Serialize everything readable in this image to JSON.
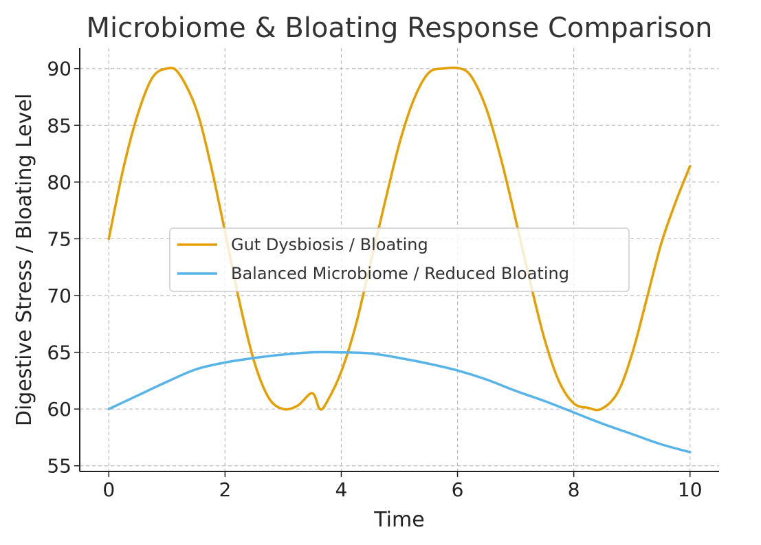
{
  "chart_data": {
    "type": "line",
    "title": "Microbiome & Bloating Response Comparison",
    "xlabel": "Time",
    "ylabel": "Digestive Stress / Bloating Level",
    "xlim": [
      -0.5,
      10.5
    ],
    "ylim": [
      54.5,
      91.8
    ],
    "xticks": [
      0,
      2,
      4,
      6,
      8,
      10
    ],
    "yticks": [
      55,
      60,
      65,
      70,
      75,
      80,
      85,
      90
    ],
    "xtick_labels": [
      "0",
      "2",
      "4",
      "6",
      "8",
      "10"
    ],
    "ytick_labels": [
      "55",
      "60",
      "65",
      "70",
      "75",
      "80",
      "85",
      "90"
    ],
    "grid": true,
    "legend_position": "center",
    "series": [
      {
        "name": "Gut Dysbiosis / Bloating",
        "color": "#E69F00",
        "x": [
          0,
          0.25,
          0.5,
          0.75,
          1.0,
          1.2,
          1.5,
          1.75,
          2.0,
          2.25,
          2.5,
          2.75,
          3.0,
          3.25,
          3.5,
          3.63,
          3.75,
          4.0,
          4.25,
          4.5,
          4.75,
          5.0,
          5.25,
          5.5,
          5.75,
          6.05,
          6.25,
          6.5,
          6.75,
          7.0,
          7.25,
          7.5,
          7.75,
          8.0,
          8.25,
          8.47,
          8.75,
          9.0,
          9.25,
          9.5,
          9.75,
          10.0
        ],
        "y": [
          75.0,
          81.2,
          86.0,
          89.2,
          90.0,
          89.6,
          86.5,
          81.6,
          75.6,
          69.4,
          64.2,
          61.0,
          60.0,
          60.3,
          61.4,
          60.0,
          60.6,
          63.3,
          67.4,
          72.8,
          78.2,
          83.4,
          87.3,
          89.6,
          90.0,
          90.0,
          89.2,
          86.4,
          82.0,
          76.7,
          71.2,
          66.1,
          62.4,
          60.5,
          60.1,
          60.0,
          61.4,
          64.8,
          69.6,
          74.5,
          78.2,
          81.4
        ]
      },
      {
        "name": "Balanced Microbiome / Reduced Bloating",
        "color": "#56B4E9",
        "x": [
          0,
          0.5,
          1.0,
          1.5,
          2.0,
          2.5,
          3.0,
          3.5,
          3.9,
          4.5,
          5.0,
          5.5,
          6.0,
          6.5,
          7.0,
          7.5,
          8.0,
          8.5,
          9.0,
          9.5,
          10.0
        ],
        "y": [
          60.0,
          61.2,
          62.4,
          63.5,
          64.1,
          64.5,
          64.8,
          65.0,
          65.0,
          64.9,
          64.5,
          64.0,
          63.4,
          62.6,
          61.6,
          60.7,
          59.7,
          58.7,
          57.8,
          56.9,
          56.2
        ]
      }
    ]
  }
}
